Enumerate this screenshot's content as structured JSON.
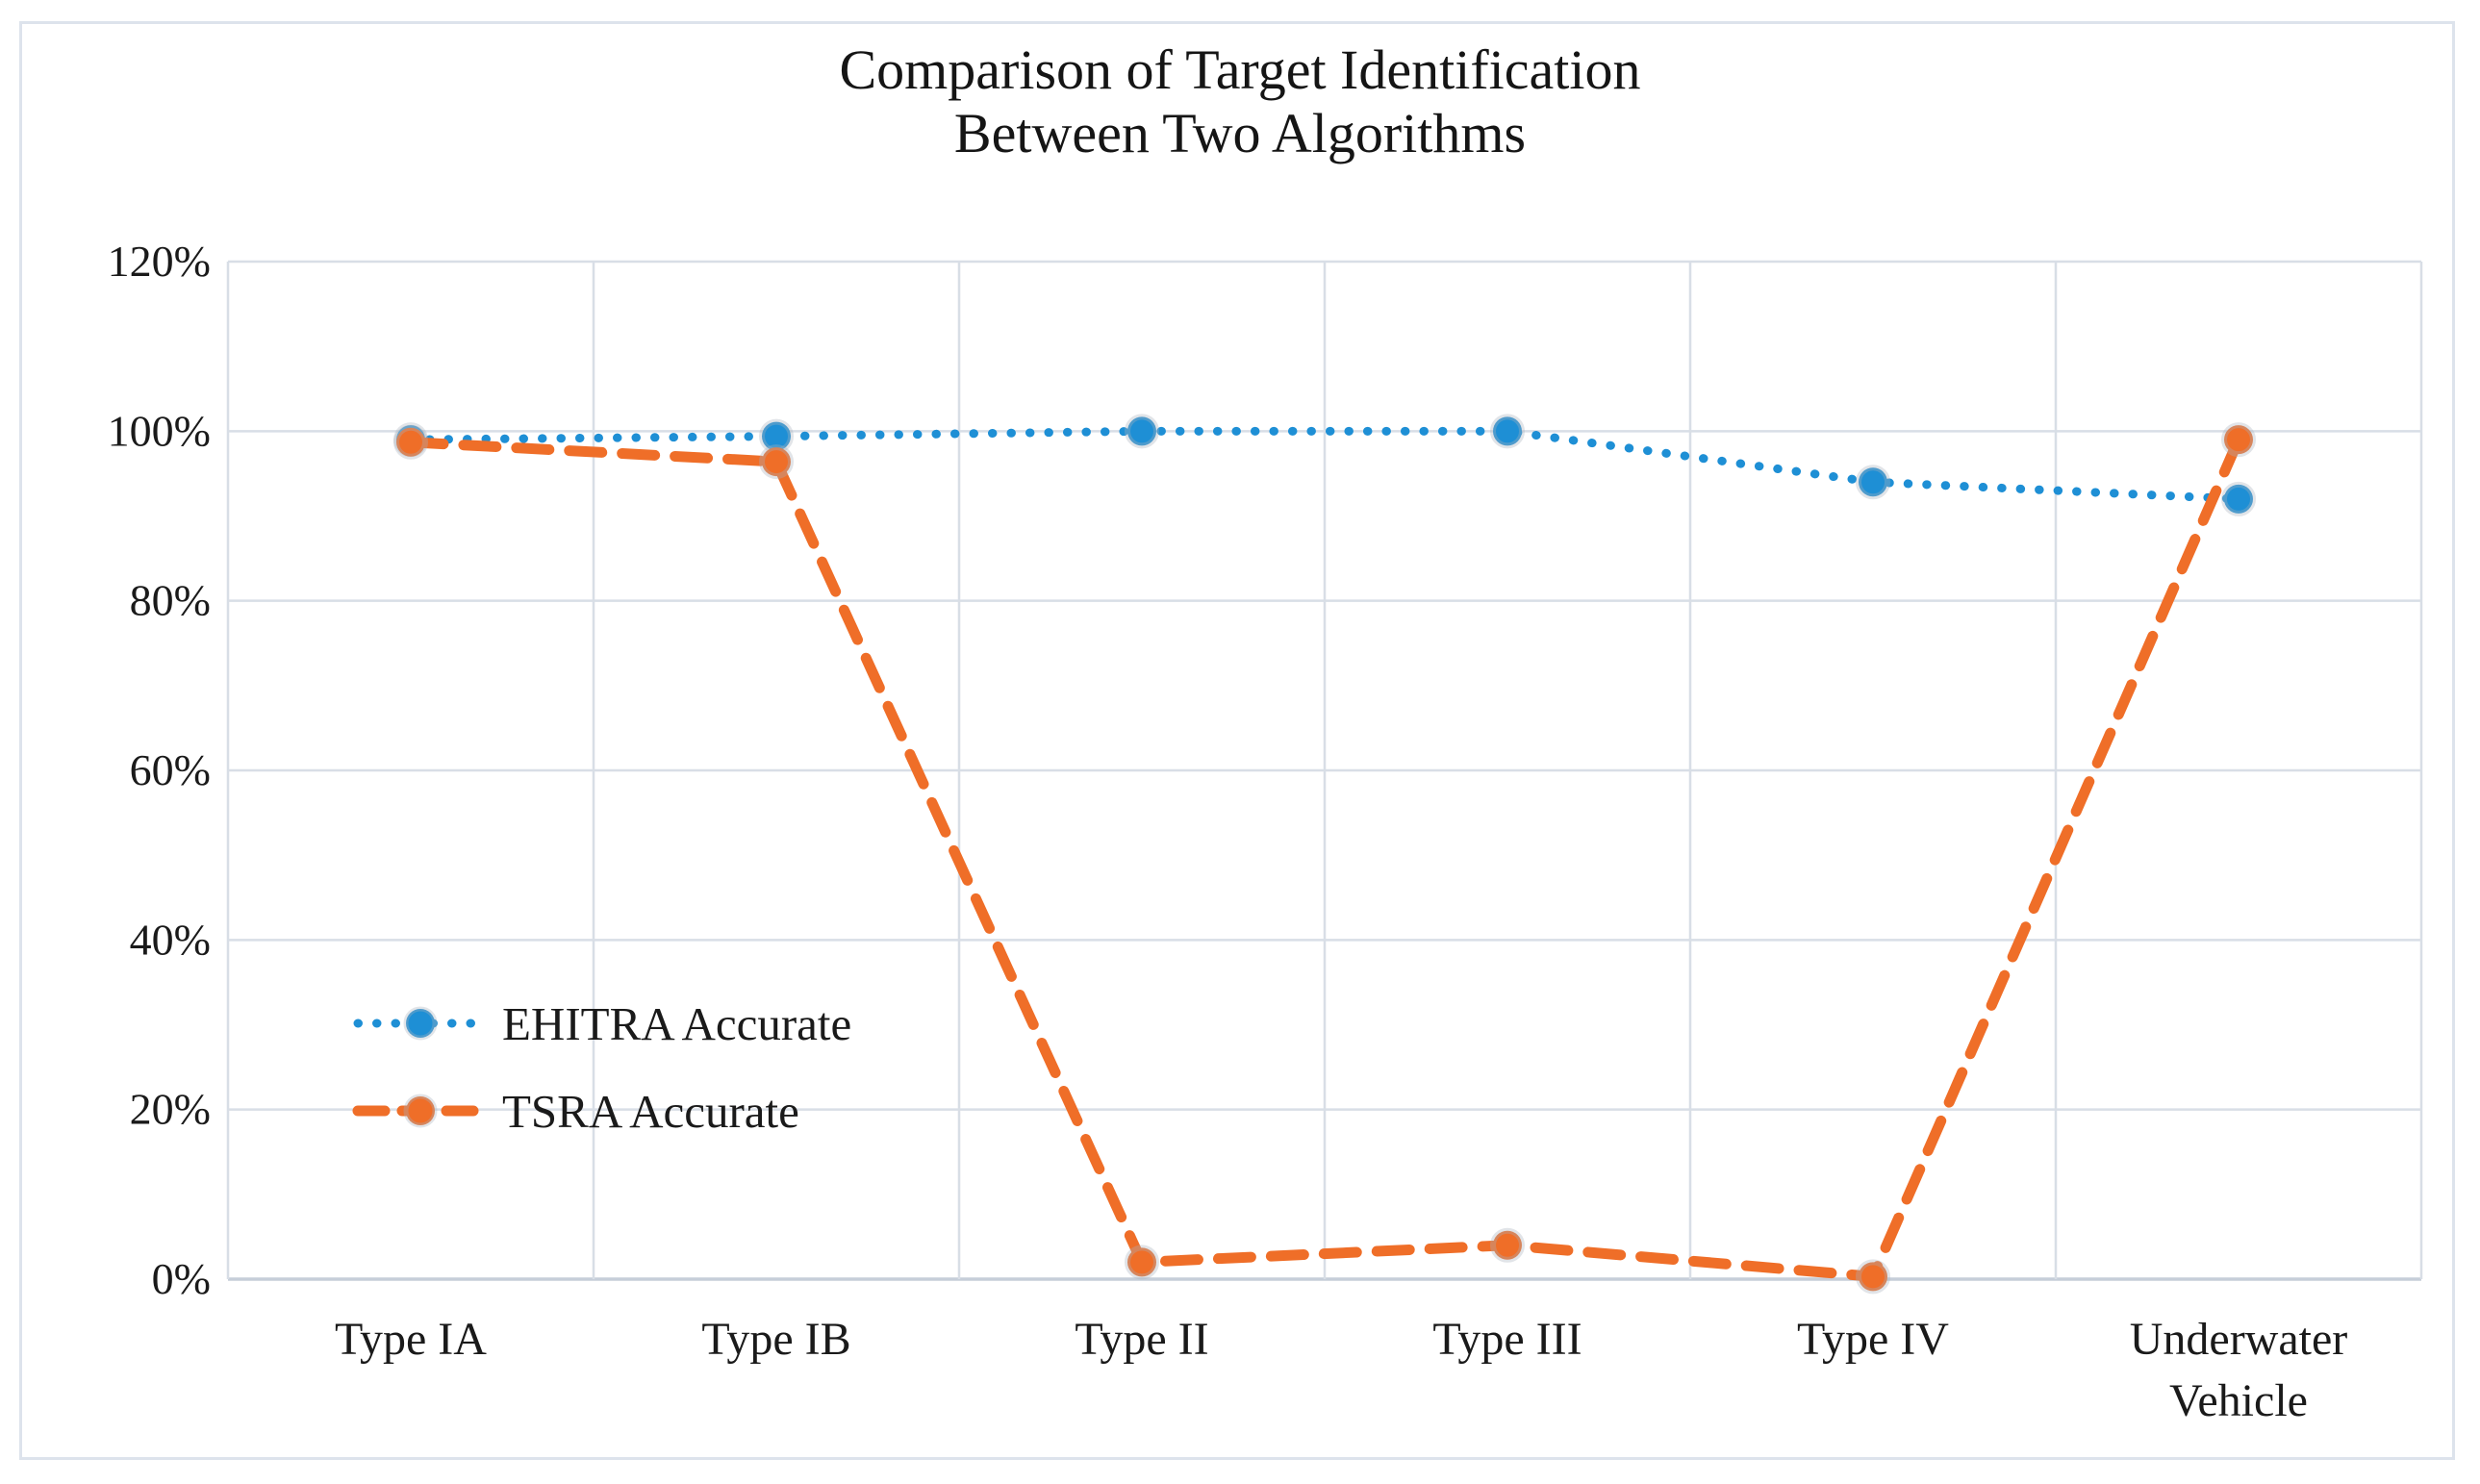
{
  "page": {
    "background_color": "#ffffff",
    "frame_border_color": "#dde3ec"
  },
  "colors": {
    "ehitra_blue": "#1e8fd5",
    "tsra_orange": "#ef6e28",
    "gridline": "#d8dee6",
    "axis_line": "#c6ced9",
    "text": "#1a1a1a"
  },
  "chart_data": {
    "type": "line",
    "title": "Comparison of Target Identification Between Two Algorithms",
    "title_lines": [
      "Comparison of Target Identification",
      "Between Two Algorithms"
    ],
    "categories": [
      "Type IA",
      "Type IB",
      "Type II",
      "Type III",
      "Type IV",
      "Underwater Vehicle"
    ],
    "series": [
      {
        "name": "EHITRA Accurate",
        "color": "#1e8fd5",
        "line_style": "dotted",
        "marker": "circle",
        "values": [
          99,
          99.4,
          100,
          100,
          94,
          92
        ]
      },
      {
        "name": "TSRA Accurate",
        "color": "#ef6e28",
        "line_style": "dashed",
        "marker": "circle",
        "values": [
          98.7,
          96.4,
          2,
          4,
          0.3,
          99
        ]
      }
    ],
    "y_axis": {
      "min": 0,
      "max": 120,
      "tick_step": 20,
      "tick_labels": [
        "0%",
        "20%",
        "40%",
        "60%",
        "80%",
        "100%",
        "120%"
      ],
      "unit": "percent"
    },
    "x_axis": {
      "label": "",
      "gridlines": true
    },
    "grid": "on",
    "legend_position": "inside-left",
    "xlabel": "",
    "ylabel": ""
  }
}
